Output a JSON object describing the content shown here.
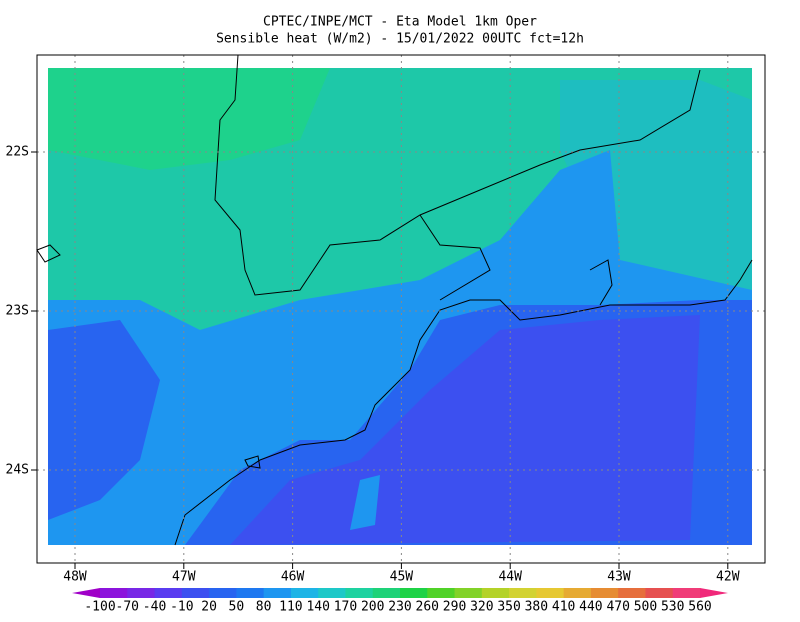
{
  "header": {
    "title": "CPTEC/INPE/MCT -  Eta Model 1km Oper",
    "subtitle": "Sensible heat (W/m2) - 15/01/2022 00UTC fct=12h"
  },
  "map": {
    "lon_labels": [
      "48W",
      "47W",
      "46W",
      "45W",
      "44W",
      "43W",
      "42W"
    ],
    "lat_labels": [
      "22S",
      "23S",
      "24S"
    ]
  },
  "colorbar": {
    "labels": [
      -100,
      -70,
      -40,
      -10,
      20,
      50,
      80,
      110,
      140,
      170,
      200,
      230,
      260,
      290,
      320,
      350,
      380,
      410,
      440,
      470,
      500,
      530,
      560
    ],
    "colors": [
      "#a000c8",
      "#8c14dc",
      "#7828e6",
      "#5a3cf0",
      "#3c50f0",
      "#2864f0",
      "#1e78f0",
      "#1e96f0",
      "#1eb4e6",
      "#1ec8c8",
      "#1ed2a0",
      "#1ed278",
      "#1ed246",
      "#50d228",
      "#82d228",
      "#b4d228",
      "#d2d232",
      "#e6c832",
      "#e6aa32",
      "#e68c32",
      "#e66e3c",
      "#e65050",
      "#f03c78",
      "#f0287a"
    ]
  }
}
